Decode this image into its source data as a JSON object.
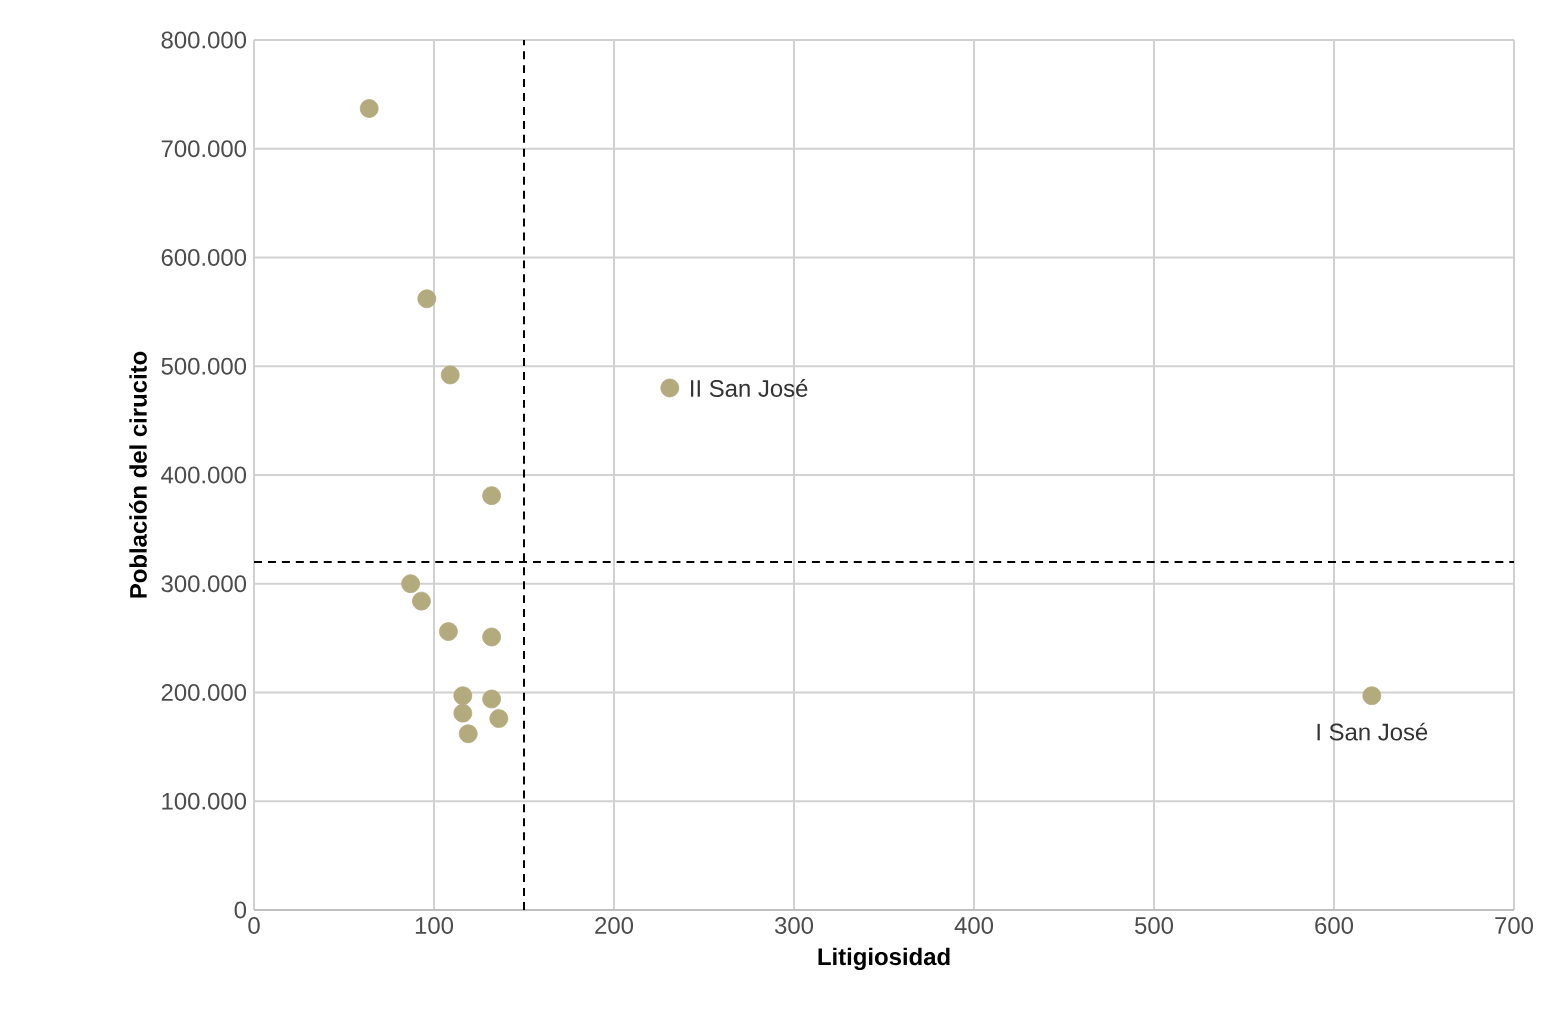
{
  "chart_data": {
    "type": "scatter",
    "xlabel": "Litigiosidad",
    "ylabel": "Población del cirucito",
    "x": [
      64,
      96,
      109,
      132,
      87,
      93,
      108,
      132,
      116,
      132,
      116,
      136,
      119,
      231,
      621
    ],
    "values": [
      737000,
      562000,
      492000,
      381000,
      300000,
      284000,
      256000,
      251000,
      197000,
      194000,
      181000,
      176000,
      162000,
      480000,
      197000
    ],
    "color": "#b3aa7e",
    "marker": "circle",
    "grid": true,
    "xlim": [
      0,
      700
    ],
    "xticks": [
      0,
      100,
      200,
      300,
      400,
      500,
      600,
      700
    ],
    "ylim": [
      0,
      800000
    ],
    "yticks": [
      {
        "value": 0,
        "label": "0"
      },
      {
        "value": 100000,
        "label": "100.000"
      },
      {
        "value": 200000,
        "label": "200.000"
      },
      {
        "value": 300000,
        "label": "300.000"
      },
      {
        "value": 400000,
        "label": "400.000"
      },
      {
        "value": 500000,
        "label": "500.000"
      },
      {
        "value": 600000,
        "label": "600.000"
      },
      {
        "value": 700000,
        "label": "700.000"
      },
      {
        "value": 800000,
        "label": "800.000"
      }
    ],
    "ref_lines": [
      {
        "axis": "x",
        "value": 150,
        "color": "#000000",
        "line_style": "dashed"
      },
      {
        "axis": "y",
        "value": 320000,
        "color": "#000000",
        "line_style": "dashed"
      }
    ],
    "annotations": [
      {
        "text": "II San José",
        "x": 231,
        "y": 480000
      },
      {
        "text": "I San José",
        "x": 621,
        "y": 197000
      }
    ]
  }
}
